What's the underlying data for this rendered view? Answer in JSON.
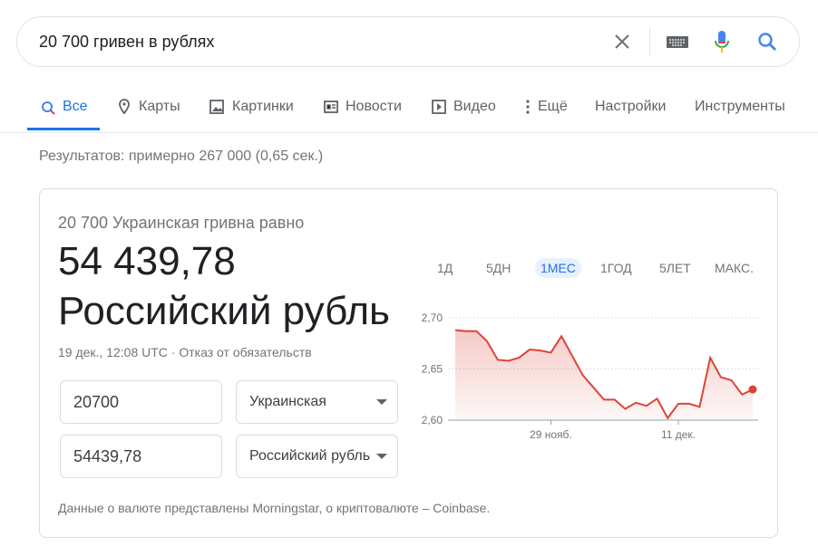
{
  "search": {
    "query": "20 700 гривен в рублях"
  },
  "tabs": [
    "Все",
    "Карты",
    "Картинки",
    "Новости",
    "Видео",
    "Ещё",
    "Настройки",
    "Инструменты"
  ],
  "results_stats": "Результатов: примерно 267 000 (0,65 сек.)",
  "card": {
    "equals_text": "20 700 Украинская гривна равно",
    "result_value": "54 439,78",
    "result_currency": "Российский рубль",
    "timestamp": "19 дек., 12:08 UTC",
    "disclaimer": "Отказ от обязательств",
    "from_amount": "20700",
    "from_currency": "Украинская гривна",
    "to_amount": "54439,78",
    "to_currency": "Российский рубль",
    "range_tabs": [
      "1Д",
      "5ДН",
      "1МЕС",
      "1ГОД",
      "5ЛЕТ",
      "МАКС."
    ],
    "selected_range": 2,
    "source_note": "Данные о валюте представлены Morningstar, о криптовалюте – Coinbase."
  },
  "chart_data": {
    "type": "line",
    "categories": [
      null,
      null,
      null,
      null,
      null,
      null,
      null,
      null,
      null,
      "29 нояб.",
      null,
      null,
      null,
      null,
      null,
      null,
      null,
      null,
      null,
      null,
      null,
      "11 дек.",
      null,
      null,
      null,
      null,
      null,
      null,
      null
    ],
    "series": [
      {
        "color": "#db4437",
        "values": [
          2.688,
          2.687,
          2.687,
          2.677,
          2.659,
          2.658,
          2.661,
          2.669,
          2.668,
          2.666,
          2.682,
          2.663,
          2.644,
          2.632,
          2.62,
          2.62,
          2.611,
          2.617,
          2.614,
          2.621,
          2.602,
          2.616,
          2.616,
          2.613,
          2.661,
          2.642,
          2.639,
          2.625,
          2.63
        ]
      }
    ],
    "ylim": [
      2.6,
      2.7
    ],
    "yticks": [
      {
        "value": 2.6,
        "label": "2,60"
      },
      {
        "value": 2.65,
        "label": "2,65"
      },
      {
        "value": 2.7,
        "label": "2,70"
      }
    ],
    "grid": true
  }
}
